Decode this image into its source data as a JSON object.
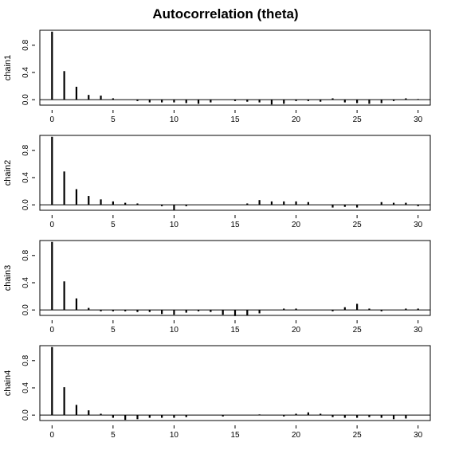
{
  "title": "Autocorrelation (theta)",
  "chart_data": [
    {
      "type": "bar",
      "ylabel": "chain1",
      "xlim": [
        -1,
        31
      ],
      "ylim": [
        -0.08,
        1.02
      ],
      "x_ticks": [
        0,
        5,
        10,
        15,
        20,
        25,
        30
      ],
      "y_ticks": [
        0.0,
        0.4,
        0.8
      ],
      "x": [
        0,
        1,
        2,
        3,
        4,
        5,
        6,
        7,
        8,
        9,
        10,
        11,
        12,
        13,
        14,
        15,
        16,
        17,
        18,
        19,
        20,
        21,
        22,
        23,
        24,
        25,
        26,
        27,
        28,
        29,
        30
      ],
      "values": [
        1.0,
        0.42,
        0.19,
        0.07,
        0.06,
        0.02,
        0.0,
        -0.02,
        -0.04,
        -0.04,
        -0.04,
        -0.05,
        -0.06,
        -0.04,
        0.0,
        -0.02,
        -0.03,
        -0.04,
        -0.07,
        -0.06,
        -0.02,
        -0.02,
        -0.03,
        0.02,
        -0.04,
        -0.05,
        -0.06,
        -0.05,
        -0.02,
        0.02,
        0.01
      ]
    },
    {
      "type": "bar",
      "ylabel": "chain2",
      "xlim": [
        -1,
        31
      ],
      "ylim": [
        -0.08,
        1.02
      ],
      "x_ticks": [
        0,
        5,
        10,
        15,
        20,
        25,
        30
      ],
      "y_ticks": [
        0.0,
        0.4,
        0.8
      ],
      "x": [
        0,
        1,
        2,
        3,
        4,
        5,
        6,
        7,
        8,
        9,
        10,
        11,
        12,
        13,
        14,
        15,
        16,
        17,
        18,
        19,
        20,
        21,
        22,
        23,
        24,
        25,
        26,
        27,
        28,
        29,
        30
      ],
      "values": [
        1.0,
        0.49,
        0.23,
        0.13,
        0.08,
        0.05,
        0.03,
        0.02,
        0.0,
        -0.02,
        -0.08,
        -0.02,
        0.0,
        0.0,
        0.0,
        0.0,
        0.02,
        0.07,
        0.05,
        0.05,
        0.05,
        0.04,
        0.0,
        -0.04,
        -0.03,
        -0.04,
        0.0,
        0.04,
        0.03,
        0.03,
        -0.02
      ]
    },
    {
      "type": "bar",
      "ylabel": "chain3",
      "xlim": [
        -1,
        31
      ],
      "ylim": [
        -0.08,
        1.02
      ],
      "x_ticks": [
        0,
        5,
        10,
        15,
        20,
        25,
        30
      ],
      "y_ticks": [
        0.0,
        0.4,
        0.8
      ],
      "x": [
        0,
        1,
        2,
        3,
        4,
        5,
        6,
        7,
        8,
        9,
        10,
        11,
        12,
        13,
        14,
        15,
        16,
        17,
        18,
        19,
        20,
        21,
        22,
        23,
        24,
        25,
        26,
        27,
        28,
        29,
        30
      ],
      "values": [
        1.0,
        0.42,
        0.17,
        0.03,
        -0.02,
        -0.02,
        -0.02,
        -0.03,
        -0.03,
        -0.06,
        -0.07,
        -0.04,
        -0.02,
        -0.03,
        -0.07,
        -0.09,
        -0.08,
        -0.05,
        0.0,
        0.02,
        0.02,
        0.0,
        0.0,
        -0.02,
        0.04,
        0.09,
        0.02,
        -0.02,
        0.0,
        0.02,
        0.02
      ]
    },
    {
      "type": "bar",
      "ylabel": "chain4",
      "xlim": [
        -1,
        31
      ],
      "ylim": [
        -0.08,
        1.02
      ],
      "x_ticks": [
        0,
        5,
        10,
        15,
        20,
        25,
        30
      ],
      "y_ticks": [
        0.0,
        0.4,
        0.8
      ],
      "x": [
        0,
        1,
        2,
        3,
        4,
        5,
        6,
        7,
        8,
        9,
        10,
        11,
        12,
        13,
        14,
        15,
        16,
        17,
        18,
        19,
        20,
        21,
        22,
        23,
        24,
        25,
        26,
        27,
        28,
        29,
        30
      ],
      "values": [
        1.0,
        0.41,
        0.15,
        0.07,
        0.02,
        -0.04,
        -0.07,
        -0.06,
        -0.04,
        -0.04,
        -0.04,
        -0.03,
        0.0,
        0.0,
        -0.02,
        0.0,
        0.0,
        0.01,
        0.0,
        -0.02,
        0.02,
        0.04,
        0.02,
        -0.03,
        -0.04,
        -0.04,
        -0.03,
        -0.04,
        -0.06,
        -0.05,
        0.0
      ]
    }
  ]
}
